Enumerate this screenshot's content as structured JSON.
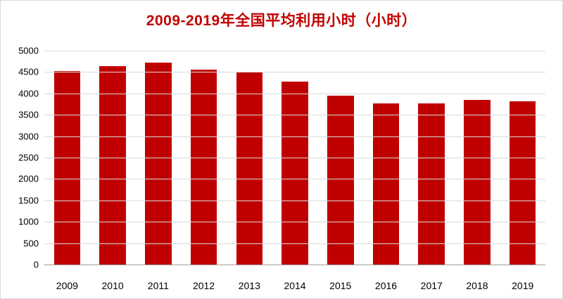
{
  "colors": {
    "bar": "#c00000",
    "title": "#c00000",
    "gridline": "#d9d9d9",
    "axis_line": "#9e9e9e",
    "tick_text": "#000000"
  },
  "chart_data": {
    "type": "bar",
    "title": "2009-2019年全国平均利用小时（小时）",
    "categories": [
      "2009",
      "2010",
      "2011",
      "2012",
      "2013",
      "2014",
      "2015",
      "2016",
      "2017",
      "2018",
      "2019"
    ],
    "values": [
      4546,
      4650,
      4730,
      4579,
      4511,
      4286,
      3969,
      3785,
      3790,
      3862,
      3825
    ],
    "xlabel": "",
    "ylabel": "",
    "ylim": [
      0,
      5000
    ],
    "ytick_step": 500,
    "ytick_labels": [
      "0",
      "500",
      "1000",
      "1500",
      "2000",
      "2500",
      "3000",
      "3500",
      "4000",
      "4500",
      "5000"
    ],
    "grid": true,
    "legend_position": "none",
    "bar_color": "#c00000"
  }
}
